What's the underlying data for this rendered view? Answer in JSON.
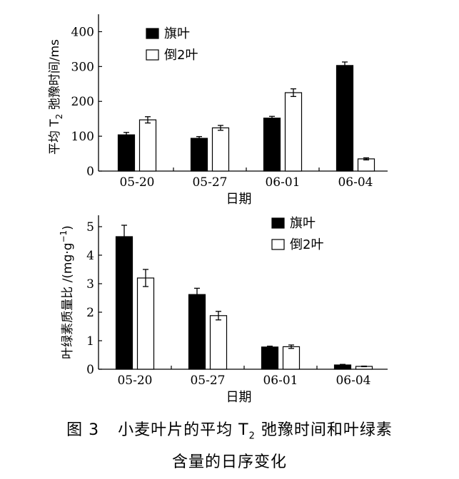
{
  "chart_data": [
    {
      "type": "bar",
      "ylabel_prefix": "平均 T",
      "ylabel_sub": "2",
      "ylabel_suffix": " 弛豫时间/ms",
      "xlabel": "日期",
      "categories": [
        "05-20",
        "05-27",
        "06-01",
        "06-04"
      ],
      "ylim": [
        0,
        450
      ],
      "yticks": [
        0,
        100,
        200,
        300,
        400
      ],
      "legend_position": "top-left",
      "series": [
        {
          "name": "旗叶",
          "fill": "#000000",
          "values": [
            104,
            94,
            152,
            303
          ],
          "errors": [
            7,
            5,
            5,
            10
          ]
        },
        {
          "name": "倒2叶",
          "fill": "#ffffff",
          "values": [
            147,
            124,
            225,
            35
          ],
          "errors": [
            9,
            7,
            11,
            3
          ]
        }
      ]
    },
    {
      "type": "bar",
      "ylabel_prefix": "叶绿素质量比 /(mg·g",
      "ylabel_sup": "−1",
      "ylabel_suffix": ")",
      "xlabel": "日期",
      "categories": [
        "05-20",
        "05-27",
        "06-01",
        "06-04"
      ],
      "ylim": [
        0,
        5.4
      ],
      "yticks": [
        0,
        1,
        2,
        3,
        4,
        5
      ],
      "legend_position": "top-right",
      "series": [
        {
          "name": "旗叶",
          "fill": "#000000",
          "values": [
            4.65,
            2.62,
            0.78,
            0.15
          ],
          "errors": [
            0.4,
            0.22,
            0.03,
            0.02
          ]
        },
        {
          "name": "倒2叶",
          "fill": "#ffffff",
          "values": [
            3.2,
            1.88,
            0.79,
            0.1
          ],
          "errors": [
            0.3,
            0.15,
            0.06,
            0.01
          ]
        }
      ]
    }
  ],
  "caption": {
    "number": "图 3",
    "line1_prefix": "小麦叶片的平均 T",
    "line1_sub": "2",
    "line1_suffix": " 弛豫时间和叶绿素",
    "line2": "含量的日序变化"
  }
}
